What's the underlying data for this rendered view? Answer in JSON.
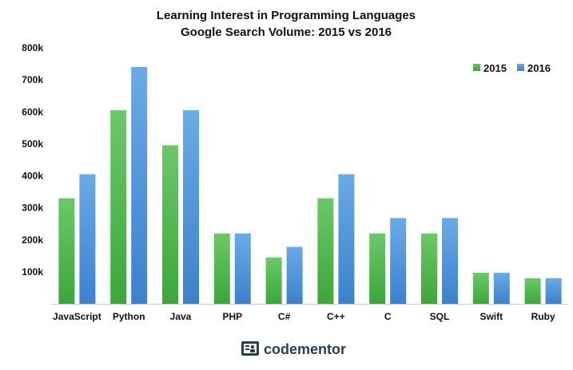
{
  "chart_data": {
    "type": "bar",
    "title_lines": [
      "Learning Interest in Programming Languages",
      "Google Search Volume: 2015 vs 2016"
    ],
    "xlabel": "",
    "ylabel": "",
    "categories": [
      "JavaScript",
      "Python",
      "Java",
      "PHP",
      "C#",
      "C++",
      "C",
      "SQL",
      "Swift",
      "Ruby"
    ],
    "series": [
      {
        "name": "2015",
        "color": "#4cb848",
        "values": [
          330000,
          605000,
          495000,
          220000,
          145000,
          330000,
          220000,
          220000,
          97000,
          80000
        ]
      },
      {
        "name": "2016",
        "color": "#4a90d9",
        "values": [
          405000,
          740000,
          605000,
          220000,
          178000,
          405000,
          268000,
          268000,
          97000,
          80000
        ]
      }
    ],
    "ylim": [
      0,
      800000
    ],
    "yticks": [
      {
        "value": 100000,
        "label": "100k"
      },
      {
        "value": 200000,
        "label": "200k"
      },
      {
        "value": 300000,
        "label": "300k"
      },
      {
        "value": 400000,
        "label": "400k"
      },
      {
        "value": 500000,
        "label": "500k"
      },
      {
        "value": 600000,
        "label": "600k"
      },
      {
        "value": 700000,
        "label": "700k"
      },
      {
        "value": 800000,
        "label": "800k"
      }
    ],
    "grid": false,
    "legend_position": "top-right"
  },
  "branding": {
    "logo_text": "codementor",
    "logo_icon": "codementor-logo-icon"
  }
}
